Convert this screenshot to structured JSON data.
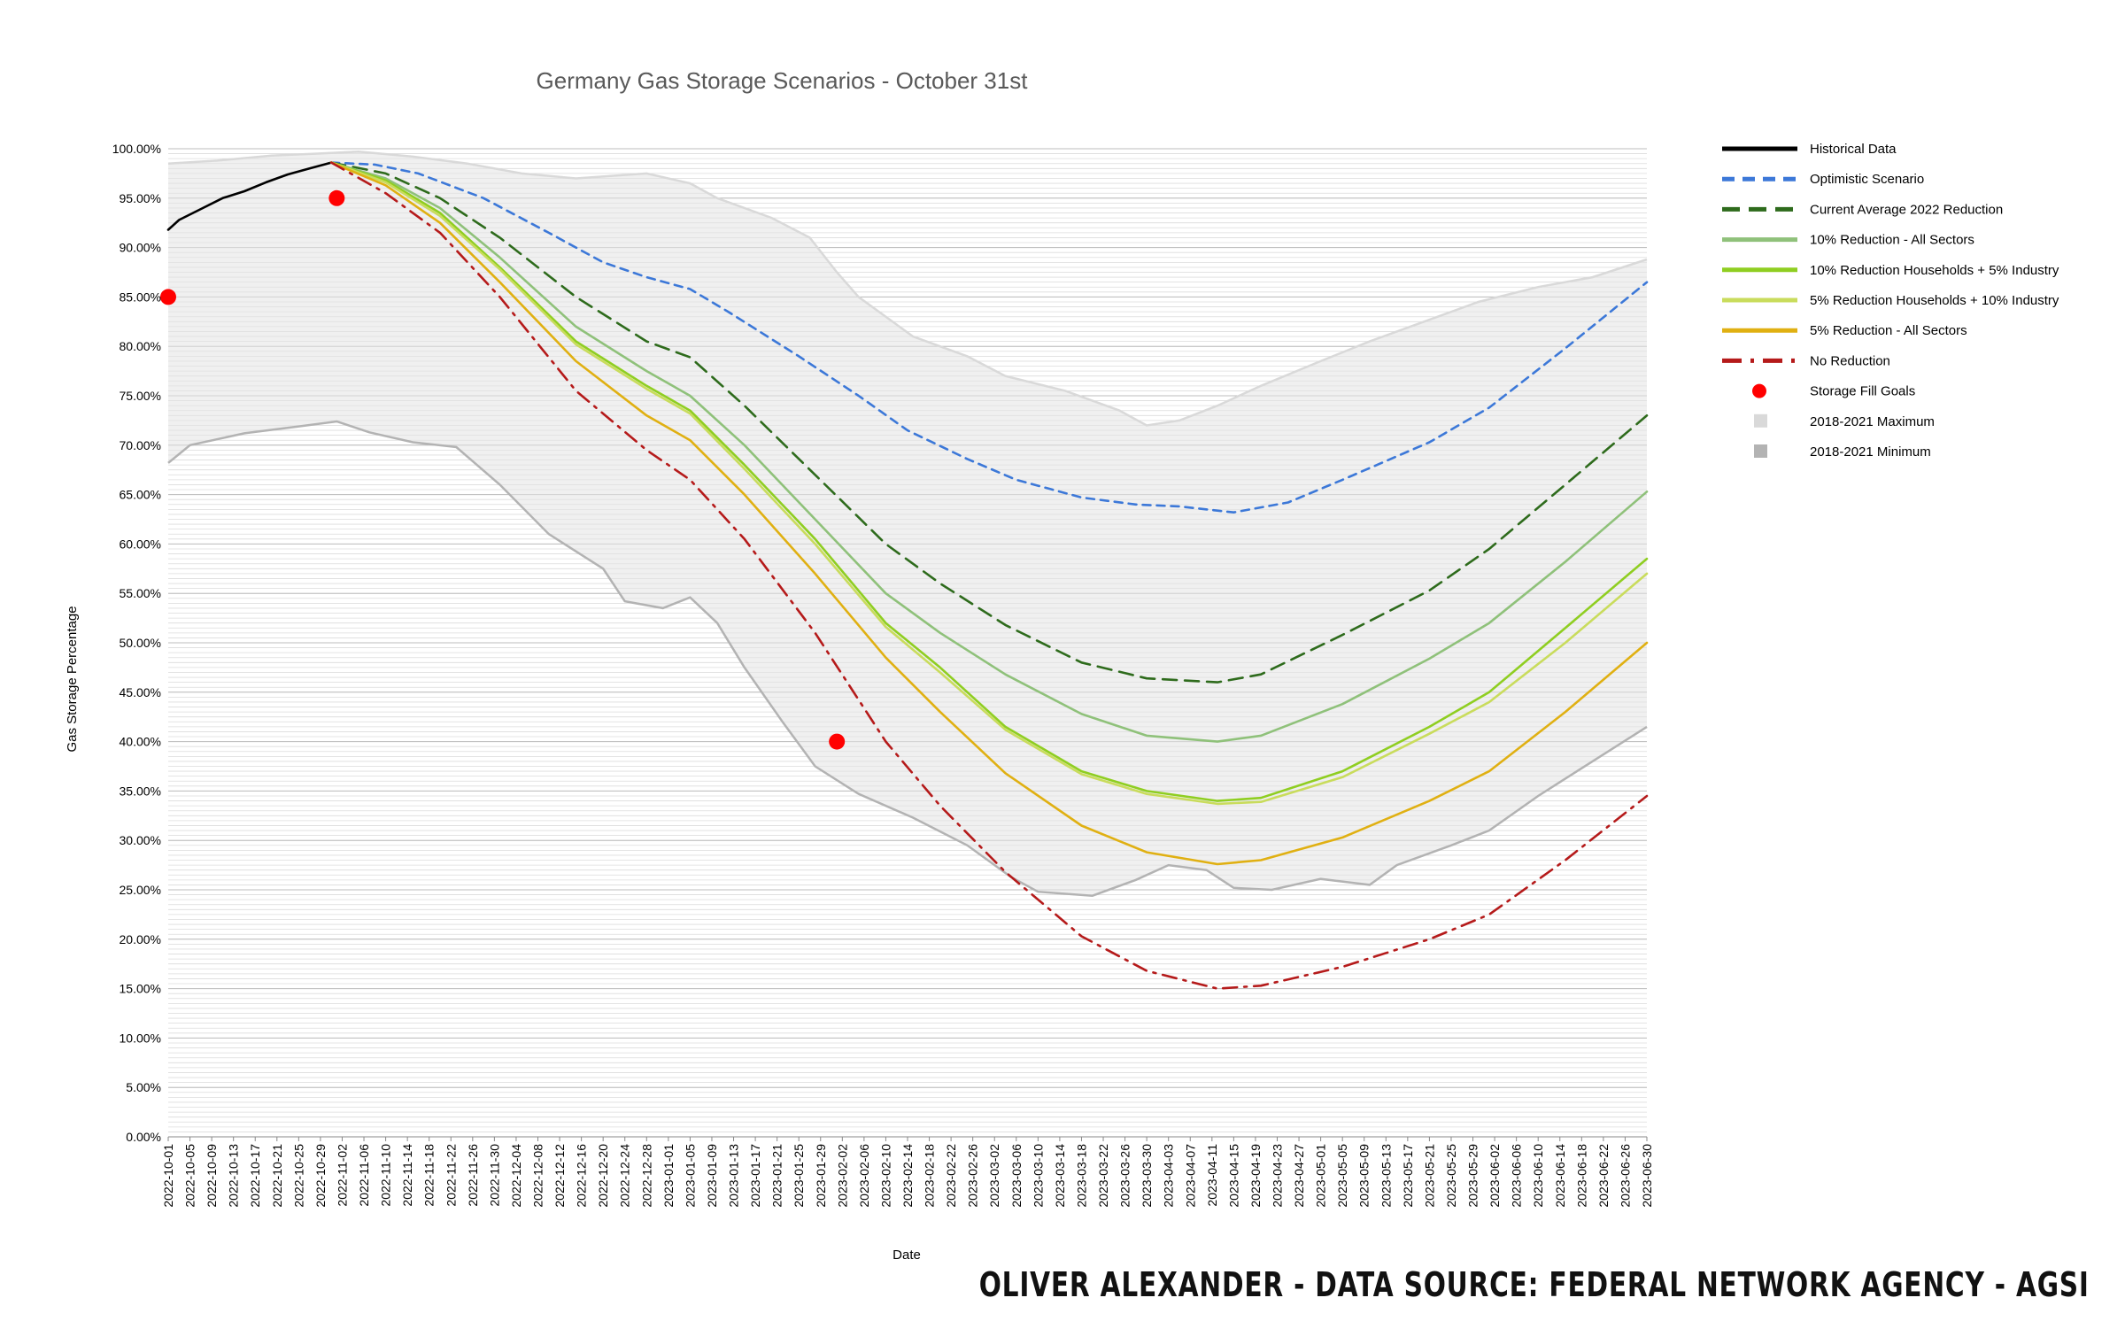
{
  "chart_data": {
    "type": "line",
    "title": "Germany Gas Storage Scenarios - October 31st",
    "xlabel": "Date",
    "ylabel": "Gas Storage Percentage",
    "ylim": [
      0,
      100
    ],
    "x_range": [
      "2022-10-01",
      "2023-06-30"
    ],
    "tick_interval_days": 4,
    "y_ticks": [
      "0.00%",
      "5.00%",
      "10.00%",
      "15.00%",
      "20.00%",
      "25.00%",
      "30.00%",
      "35.00%",
      "40.00%",
      "45.00%",
      "50.00%",
      "55.00%",
      "60.00%",
      "65.00%",
      "70.00%",
      "75.00%",
      "80.00%",
      "85.00%",
      "90.00%",
      "95.00%",
      "100.00%"
    ],
    "grid": true,
    "legend_position": "right",
    "band": {
      "max": {
        "name": "2018-2021 Maximum",
        "color": "#d9d9d9",
        "points": [
          [
            "2022-10-01",
            98.5
          ],
          [
            "2022-10-10",
            98.8
          ],
          [
            "2022-10-20",
            99.3
          ],
          [
            "2022-10-28",
            99.5
          ],
          [
            "2022-11-05",
            99.7
          ],
          [
            "2022-11-15",
            99.2
          ],
          [
            "2022-11-25",
            98.5
          ],
          [
            "2022-12-05",
            97.5
          ],
          [
            "2022-12-15",
            97.0
          ],
          [
            "2022-12-28",
            97.5
          ],
          [
            "2023-01-05",
            96.5
          ],
          [
            "2023-01-10",
            95.0
          ],
          [
            "2023-01-20",
            93.0
          ],
          [
            "2023-01-27",
            91.0
          ],
          [
            "2023-02-01",
            87.5
          ],
          [
            "2023-02-05",
            85.0
          ],
          [
            "2023-02-15",
            81.0
          ],
          [
            "2023-02-25",
            79.0
          ],
          [
            "2023-03-04",
            77.0
          ],
          [
            "2023-03-15",
            75.5
          ],
          [
            "2023-03-25",
            73.5
          ],
          [
            "2023-03-30",
            72.0
          ],
          [
            "2023-04-05",
            72.5
          ],
          [
            "2023-04-12",
            74.0
          ],
          [
            "2023-04-20",
            76.0
          ],
          [
            "2023-05-01",
            78.5
          ],
          [
            "2023-05-10",
            80.5
          ],
          [
            "2023-05-20",
            82.5
          ],
          [
            "2023-05-30",
            84.5
          ],
          [
            "2023-06-10",
            86.0
          ],
          [
            "2023-06-20",
            87.0
          ],
          [
            "2023-06-30",
            88.8
          ]
        ]
      },
      "min": {
        "name": "2018-2021 Minimum",
        "color": "#b3b3b3",
        "points": [
          [
            "2022-10-01",
            68.2
          ],
          [
            "2022-10-05",
            70.0
          ],
          [
            "2022-10-15",
            71.2
          ],
          [
            "2022-10-25",
            71.9
          ],
          [
            "2022-11-01",
            72.4
          ],
          [
            "2022-11-07",
            71.3
          ],
          [
            "2022-11-15",
            70.3
          ],
          [
            "2022-11-23",
            69.8
          ],
          [
            "2022-12-01",
            66.0
          ],
          [
            "2022-12-10",
            61.0
          ],
          [
            "2022-12-20",
            57.5
          ],
          [
            "2022-12-24",
            54.2
          ],
          [
            "2022-12-31",
            53.5
          ],
          [
            "2023-01-05",
            54.6
          ],
          [
            "2023-01-10",
            52.0
          ],
          [
            "2023-01-15",
            47.5
          ],
          [
            "2023-01-22",
            42.0
          ],
          [
            "2023-01-28",
            37.5
          ],
          [
            "2023-02-05",
            34.7
          ],
          [
            "2023-02-15",
            32.3
          ],
          [
            "2023-02-25",
            29.5
          ],
          [
            "2023-03-05",
            26.3
          ],
          [
            "2023-03-10",
            24.8
          ],
          [
            "2023-03-20",
            24.4
          ],
          [
            "2023-03-28",
            26.0
          ],
          [
            "2023-04-03",
            27.5
          ],
          [
            "2023-04-10",
            27.0
          ],
          [
            "2023-04-15",
            25.2
          ],
          [
            "2023-04-22",
            25.0
          ],
          [
            "2023-05-01",
            26.1
          ],
          [
            "2023-05-10",
            25.5
          ],
          [
            "2023-05-15",
            27.5
          ],
          [
            "2023-05-25",
            29.5
          ],
          [
            "2023-06-01",
            31.0
          ],
          [
            "2023-06-10",
            34.5
          ],
          [
            "2023-06-20",
            38.0
          ],
          [
            "2023-06-30",
            41.5
          ]
        ]
      }
    },
    "series": [
      {
        "name": "Historical Data",
        "color": "#000000",
        "dash": "solid",
        "points": [
          [
            "2022-10-01",
            91.8
          ],
          [
            "2022-10-03",
            92.8
          ],
          [
            "2022-10-07",
            93.9
          ],
          [
            "2022-10-11",
            95.0
          ],
          [
            "2022-10-15",
            95.7
          ],
          [
            "2022-10-19",
            96.6
          ],
          [
            "2022-10-23",
            97.4
          ],
          [
            "2022-10-27",
            98.0
          ],
          [
            "2022-10-31",
            98.6
          ]
        ]
      },
      {
        "name": "Optimistic Scenario",
        "color": "#3c78d8",
        "dash": "dash",
        "points": [
          [
            "2022-10-31",
            98.6
          ],
          [
            "2022-11-08",
            98.4
          ],
          [
            "2022-11-16",
            97.5
          ],
          [
            "2022-11-28",
            95.0
          ],
          [
            "2022-12-10",
            91.5
          ],
          [
            "2022-12-20",
            88.5
          ],
          [
            "2022-12-28",
            87.0
          ],
          [
            "2023-01-05",
            85.8
          ],
          [
            "2023-01-12",
            83.5
          ],
          [
            "2023-01-25",
            79.0
          ],
          [
            "2023-02-05",
            75.0
          ],
          [
            "2023-02-14",
            71.5
          ],
          [
            "2023-02-25",
            68.6
          ],
          [
            "2023-03-06",
            66.5
          ],
          [
            "2023-03-18",
            64.7
          ],
          [
            "2023-03-28",
            64.0
          ],
          [
            "2023-04-05",
            63.8
          ],
          [
            "2023-04-15",
            63.2
          ],
          [
            "2023-04-25",
            64.2
          ],
          [
            "2023-05-05",
            66.5
          ],
          [
            "2023-05-21",
            70.3
          ],
          [
            "2023-06-01",
            73.8
          ],
          [
            "2023-06-15",
            79.8
          ],
          [
            "2023-06-30",
            86.5
          ]
        ]
      },
      {
        "name": "Current Average 2022 Reduction",
        "color": "#2e6b1c",
        "dash": "longdash",
        "points": [
          [
            "2022-10-31",
            98.6
          ],
          [
            "2022-11-10",
            97.5
          ],
          [
            "2022-11-20",
            95.0
          ],
          [
            "2022-12-01",
            91.0
          ],
          [
            "2022-12-15",
            85.0
          ],
          [
            "2022-12-28",
            80.5
          ],
          [
            "2023-01-05",
            78.9
          ],
          [
            "2023-01-15",
            74.0
          ],
          [
            "2023-01-28",
            67.0
          ],
          [
            "2023-02-10",
            60.0
          ],
          [
            "2023-02-20",
            56.0
          ],
          [
            "2023-03-04",
            51.8
          ],
          [
            "2023-03-18",
            48.0
          ],
          [
            "2023-03-30",
            46.4
          ],
          [
            "2023-04-12",
            46.0
          ],
          [
            "2023-04-20",
            46.8
          ],
          [
            "2023-05-05",
            50.8
          ],
          [
            "2023-05-21",
            55.3
          ],
          [
            "2023-06-01",
            59.5
          ],
          [
            "2023-06-15",
            66.0
          ],
          [
            "2023-06-30",
            73.0
          ]
        ]
      },
      {
        "name": "10% Reduction - All Sectors",
        "color": "#8fc17a",
        "dash": "solid",
        "points": [
          [
            "2022-10-31",
            98.6
          ],
          [
            "2022-11-10",
            97.0
          ],
          [
            "2022-11-20",
            94.0
          ],
          [
            "2022-12-01",
            89.0
          ],
          [
            "2022-12-15",
            82.0
          ],
          [
            "2022-12-28",
            77.5
          ],
          [
            "2023-01-05",
            75.0
          ],
          [
            "2023-01-15",
            70.0
          ],
          [
            "2023-01-28",
            62.5
          ],
          [
            "2023-02-10",
            55.0
          ],
          [
            "2023-02-20",
            51.0
          ],
          [
            "2023-03-04",
            46.8
          ],
          [
            "2023-03-18",
            42.8
          ],
          [
            "2023-03-30",
            40.6
          ],
          [
            "2023-04-12",
            40.0
          ],
          [
            "2023-04-20",
            40.6
          ],
          [
            "2023-05-05",
            43.8
          ],
          [
            "2023-05-21",
            48.4
          ],
          [
            "2023-06-01",
            52.0
          ],
          [
            "2023-06-15",
            58.2
          ],
          [
            "2023-06-30",
            65.3
          ]
        ]
      },
      {
        "name": "10% Reduction Households + 5% Industry",
        "color": "#8fce21",
        "dash": "solid",
        "points": [
          [
            "2022-10-31",
            98.6
          ],
          [
            "2022-11-10",
            96.8
          ],
          [
            "2022-11-20",
            93.5
          ],
          [
            "2022-12-01",
            88.0
          ],
          [
            "2022-12-15",
            80.5
          ],
          [
            "2022-12-28",
            76.0
          ],
          [
            "2023-01-05",
            73.5
          ],
          [
            "2023-01-15",
            68.0
          ],
          [
            "2023-01-28",
            60.5
          ],
          [
            "2023-02-10",
            52.0
          ],
          [
            "2023-02-20",
            47.5
          ],
          [
            "2023-03-04",
            41.5
          ],
          [
            "2023-03-18",
            37.0
          ],
          [
            "2023-03-30",
            35.0
          ],
          [
            "2023-04-12",
            34.0
          ],
          [
            "2023-04-20",
            34.3
          ],
          [
            "2023-05-05",
            37.0
          ],
          [
            "2023-05-21",
            41.5
          ],
          [
            "2023-06-01",
            45.0
          ],
          [
            "2023-06-15",
            51.5
          ],
          [
            "2023-06-30",
            58.5
          ]
        ]
      },
      {
        "name": "5% Reduction Households + 10% Industry",
        "color": "#c9dc5c",
        "dash": "solid",
        "points": [
          [
            "2022-10-31",
            98.6
          ],
          [
            "2022-11-10",
            96.6
          ],
          [
            "2022-11-20",
            93.2
          ],
          [
            "2022-12-01",
            87.8
          ],
          [
            "2022-12-15",
            80.2
          ],
          [
            "2022-12-28",
            75.7
          ],
          [
            "2023-01-05",
            73.2
          ],
          [
            "2023-01-15",
            67.6
          ],
          [
            "2023-01-28",
            60.0
          ],
          [
            "2023-02-10",
            51.6
          ],
          [
            "2023-02-20",
            47.0
          ],
          [
            "2023-03-04",
            41.2
          ],
          [
            "2023-03-18",
            36.7
          ],
          [
            "2023-03-30",
            34.7
          ],
          [
            "2023-04-12",
            33.7
          ],
          [
            "2023-04-20",
            33.9
          ],
          [
            "2023-05-05",
            36.4
          ],
          [
            "2023-05-21",
            40.8
          ],
          [
            "2023-06-01",
            44.0
          ],
          [
            "2023-06-15",
            50.0
          ],
          [
            "2023-06-30",
            57.0
          ]
        ]
      },
      {
        "name": "5% Reduction - All Sectors",
        "color": "#e0b012",
        "dash": "solid",
        "points": [
          [
            "2022-10-31",
            98.6
          ],
          [
            "2022-11-10",
            96.3
          ],
          [
            "2022-11-20",
            92.5
          ],
          [
            "2022-12-01",
            86.5
          ],
          [
            "2022-12-15",
            78.5
          ],
          [
            "2022-12-28",
            73.0
          ],
          [
            "2023-01-05",
            70.5
          ],
          [
            "2023-01-15",
            65.0
          ],
          [
            "2023-01-28",
            57.0
          ],
          [
            "2023-02-10",
            48.5
          ],
          [
            "2023-02-20",
            43.0
          ],
          [
            "2023-03-04",
            36.8
          ],
          [
            "2023-03-18",
            31.5
          ],
          [
            "2023-03-30",
            28.8
          ],
          [
            "2023-04-12",
            27.6
          ],
          [
            "2023-04-20",
            28.0
          ],
          [
            "2023-05-05",
            30.3
          ],
          [
            "2023-05-21",
            34.0
          ],
          [
            "2023-06-01",
            37.0
          ],
          [
            "2023-06-15",
            43.0
          ],
          [
            "2023-06-30",
            50.0
          ]
        ]
      },
      {
        "name": "No Reduction",
        "color": "#b51a1a",
        "dash": "dashdot",
        "points": [
          [
            "2022-10-31",
            98.6
          ],
          [
            "2022-11-10",
            95.5
          ],
          [
            "2022-11-20",
            91.5
          ],
          [
            "2022-12-01",
            85.0
          ],
          [
            "2022-12-15",
            75.5
          ],
          [
            "2022-12-28",
            69.5
          ],
          [
            "2023-01-05",
            66.5
          ],
          [
            "2023-01-15",
            60.5
          ],
          [
            "2023-01-28",
            51.0
          ],
          [
            "2023-02-10",
            40.0
          ],
          [
            "2023-02-20",
            33.5
          ],
          [
            "2023-03-04",
            26.8
          ],
          [
            "2023-03-18",
            20.3
          ],
          [
            "2023-03-30",
            16.8
          ],
          [
            "2023-04-12",
            15.0
          ],
          [
            "2023-04-20",
            15.3
          ],
          [
            "2023-05-05",
            17.2
          ],
          [
            "2023-05-21",
            20.0
          ],
          [
            "2023-06-01",
            22.5
          ],
          [
            "2023-06-15",
            28.0
          ],
          [
            "2023-06-30",
            34.5
          ]
        ]
      }
    ],
    "markers": {
      "name": "Storage Fill Goals",
      "color": "#ff0000",
      "points": [
        [
          "2022-10-01",
          85.0
        ],
        [
          "2022-11-01",
          95.0
        ],
        [
          "2023-02-01",
          40.0
        ]
      ]
    }
  },
  "credit": "OLIVER ALEXANDER - DATA SOURCE: FEDERAL NETWORK AGENCY - AGSI"
}
